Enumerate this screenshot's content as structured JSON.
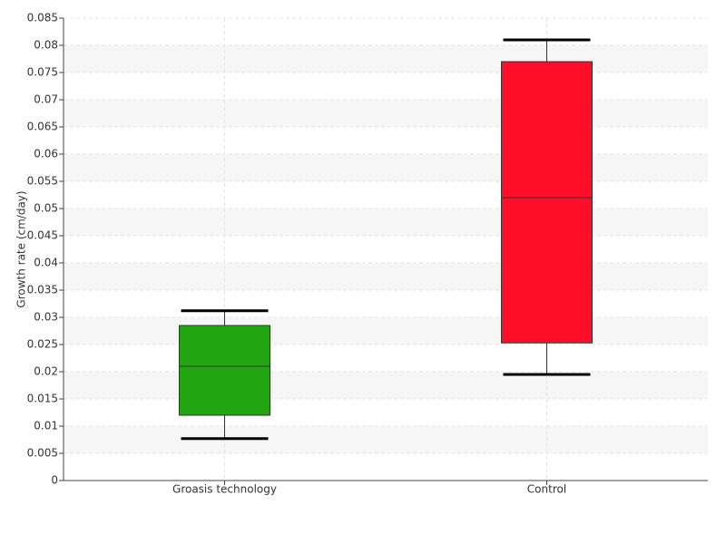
{
  "chart_data": {
    "type": "box",
    "y_label": "Growth rate (cm/day)",
    "categories": [
      "Groasis technology",
      "Control"
    ],
    "values": [
      {
        "min": 0.0077,
        "q1": 0.012,
        "median": 0.021,
        "q3": 0.0285,
        "max": 0.0312
      },
      {
        "min": 0.0195,
        "q1": 0.0253,
        "median": 0.052,
        "q3": 0.077,
        "max": 0.081
      }
    ],
    "colors": [
      "#22a511",
      "#ff0d29"
    ],
    "ylim": [
      0,
      0.085
    ],
    "yticks": [
      0,
      0.005,
      0.01,
      0.015,
      0.02,
      0.025,
      0.03,
      0.035,
      0.04,
      0.045,
      0.05,
      0.055,
      0.06,
      0.065,
      0.07,
      0.075,
      0.08,
      0.085
    ],
    "grid": true
  }
}
